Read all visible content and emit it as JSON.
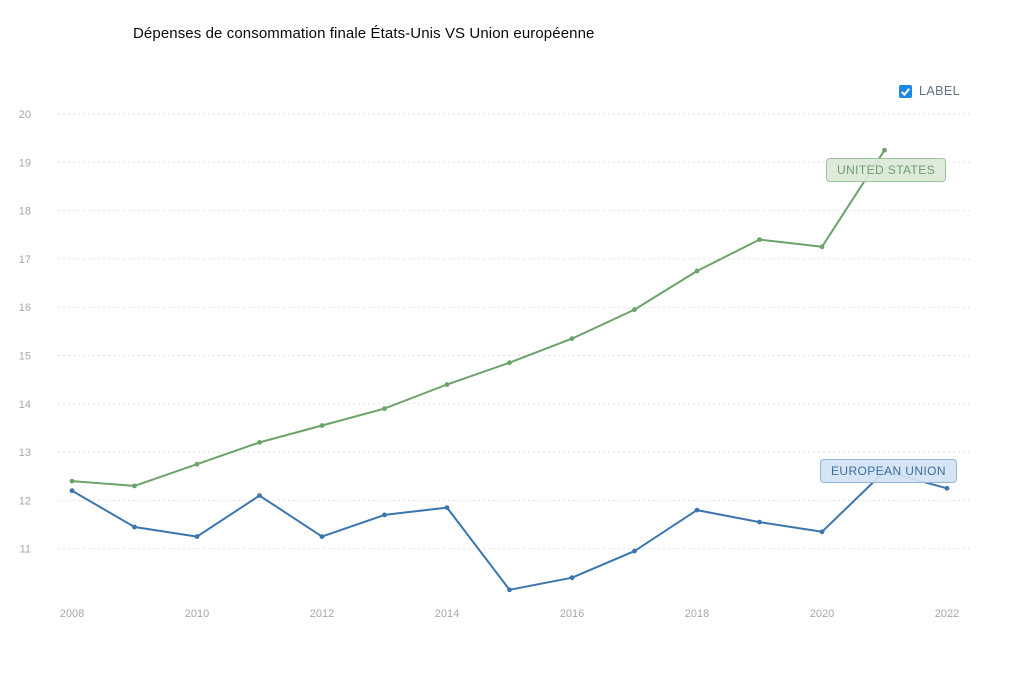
{
  "title": "Dépenses de consommation finale États-Unis VS Union européenne",
  "legend": {
    "label": "LABEL",
    "checked": true
  },
  "colors": {
    "us_line": "#6ba368",
    "eu_line": "#3b75ad",
    "us_label_bg": "#dbe9d8",
    "us_label_border": "#9cc49b",
    "us_label_text": "#6f9c6e",
    "eu_label_bg": "#d3e3f3",
    "eu_label_border": "#8fb4d8",
    "eu_label_text": "#3c6e9f",
    "grid": "#e2e2e6",
    "axis_text": "#a6a6ae",
    "checkbox": "#1e88e5"
  },
  "chart_data": {
    "type": "line",
    "title": "Dépenses de consommation finale États-Unis VS Union européenne",
    "x": [
      2008,
      2009,
      2010,
      2011,
      2012,
      2013,
      2014,
      2015,
      2016,
      2017,
      2018,
      2019,
      2020,
      2021,
      2022
    ],
    "series": [
      {
        "name": "UNITED STATES",
        "values": [
          12.4,
          12.3,
          12.75,
          13.2,
          13.55,
          13.9,
          14.4,
          14.85,
          15.35,
          15.95,
          16.75,
          17.4,
          17.25,
          19.25,
          null
        ]
      },
      {
        "name": "EUROPEAN UNION",
        "values": [
          12.2,
          11.45,
          11.25,
          12.1,
          11.25,
          11.7,
          11.85,
          10.15,
          10.4,
          10.95,
          11.8,
          11.55,
          11.35,
          12.6,
          12.25
        ]
      }
    ],
    "x_ticks": [
      2008,
      2010,
      2012,
      2014,
      2016,
      2018,
      2020,
      2022
    ],
    "y_ticks": [
      11,
      12,
      13,
      14,
      15,
      16,
      17,
      18,
      19,
      20
    ],
    "ylim": [
      10,
      20
    ],
    "grid": "horizontal dashed",
    "legend_position": "top-right",
    "xlabel": "",
    "ylabel": ""
  }
}
